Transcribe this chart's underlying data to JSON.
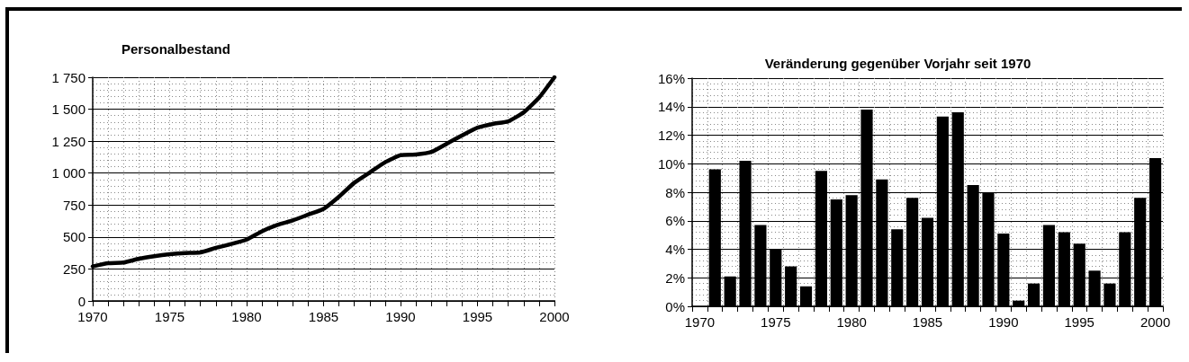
{
  "chart_data": [
    {
      "type": "line",
      "title": "Personalbestand",
      "x": [
        1970,
        1971,
        1972,
        1973,
        1974,
        1975,
        1976,
        1977,
        1978,
        1979,
        1980,
        1981,
        1982,
        1983,
        1984,
        1985,
        1986,
        1987,
        1988,
        1989,
        1990,
        1991,
        1992,
        1993,
        1994,
        1995,
        1996,
        1997,
        1998,
        1999,
        2000
      ],
      "series": [
        {
          "color": "#000000",
          "values": [
            270,
            295,
            300,
            330,
            350,
            365,
            375,
            380,
            415,
            445,
            480,
            545,
            595,
            630,
            675,
            720,
            815,
            925,
            1005,
            1085,
            1140,
            1145,
            1165,
            1230,
            1295,
            1355,
            1385,
            1405,
            1475,
            1590,
            1750
          ]
        }
      ],
      "xlim": [
        1970,
        2000
      ],
      "xticks": [
        1970,
        {
          "value": 1971,
          "label": null
        },
        {
          "value": 1972,
          "label": null
        },
        {
          "value": 1973,
          "label": null
        },
        {
          "value": 1974,
          "label": null
        },
        1975,
        {
          "value": 1976,
          "label": null
        },
        {
          "value": 1977,
          "label": null
        },
        {
          "value": 1978,
          "label": null
        },
        {
          "value": 1979,
          "label": null
        },
        1980,
        {
          "value": 1981,
          "label": null
        },
        {
          "value": 1982,
          "label": null
        },
        {
          "value": 1983,
          "label": null
        },
        {
          "value": 1984,
          "label": null
        },
        1985,
        {
          "value": 1986,
          "label": null
        },
        {
          "value": 1987,
          "label": null
        },
        {
          "value": 1988,
          "label": null
        },
        {
          "value": 1989,
          "label": null
        },
        1990,
        {
          "value": 1991,
          "label": null
        },
        {
          "value": 1992,
          "label": null
        },
        {
          "value": 1993,
          "label": null
        },
        {
          "value": 1994,
          "label": null
        },
        1995,
        {
          "value": 1996,
          "label": null
        },
        {
          "value": 1997,
          "label": null
        },
        {
          "value": 1998,
          "label": null
        },
        {
          "value": 1999,
          "label": null
        },
        2000
      ],
      "ylim": [
        0,
        1750
      ],
      "yticks": [
        0,
        250,
        500,
        750,
        {
          "value": 1000,
          "label": "1 000"
        },
        {
          "value": 1250,
          "label": "1 250"
        },
        {
          "value": 1500,
          "label": "1 500"
        },
        {
          "value": 1750,
          "label": "1 750"
        }
      ],
      "grid": true
    },
    {
      "type": "bar",
      "title": "Veränderung gegenüber Vorjahr seit 1970",
      "categories": [
        "1970",
        null,
        null,
        null,
        null,
        "1975",
        null,
        null,
        null,
        null,
        "1980",
        null,
        null,
        null,
        null,
        "1985",
        null,
        null,
        null,
        null,
        "1990",
        null,
        null,
        null,
        null,
        "1995",
        null,
        null,
        null,
        null,
        "2000"
      ],
      "series": [
        {
          "color": "#000000",
          "values": [
            null,
            9.6,
            2.1,
            10.2,
            5.7,
            4.0,
            2.8,
            1.4,
            9.5,
            7.5,
            7.8,
            13.8,
            8.9,
            5.4,
            7.6,
            6.2,
            13.3,
            13.6,
            8.5,
            8.0,
            5.1,
            0.4,
            1.6,
            5.7,
            5.2,
            4.4,
            2.5,
            1.6,
            5.2,
            7.6,
            10.4
          ]
        }
      ],
      "ylim": [
        0,
        16
      ],
      "yticks": [
        {
          "value": 0,
          "label": "0%"
        },
        {
          "value": 2,
          "label": "2%"
        },
        {
          "value": 4,
          "label": "4%"
        },
        {
          "value": 6,
          "label": "6%"
        },
        {
          "value": 8,
          "label": "8%"
        },
        {
          "value": 10,
          "label": "10%"
        },
        {
          "value": 12,
          "label": "12%"
        },
        {
          "value": 14,
          "label": "14%"
        },
        {
          "value": 16,
          "label": "16%"
        }
      ],
      "grid": true
    }
  ]
}
